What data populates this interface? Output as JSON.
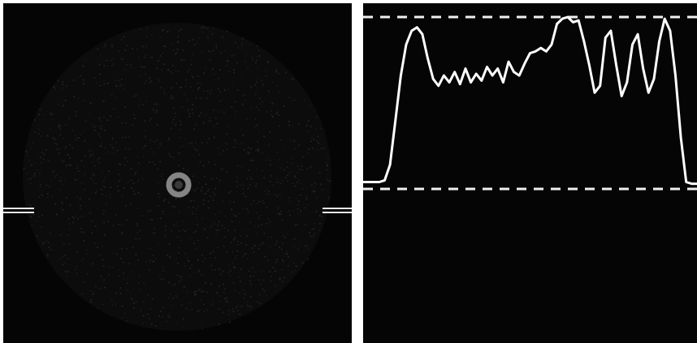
{
  "left_panel": {
    "content": "circular-speckle-image",
    "disc_color": "#2c2c2c",
    "spot_color": "#9a9a9a",
    "marker_color": "#e8e8e8"
  },
  "right_panel": {
    "content": "intensity-profile-trace",
    "trace_color": "#ffffff",
    "reference_line_style": "dashed",
    "profile": [
      0.04,
      0.04,
      0.04,
      0.04,
      0.05,
      0.14,
      0.4,
      0.66,
      0.84,
      0.92,
      0.94,
      0.9,
      0.76,
      0.64,
      0.6,
      0.66,
      0.62,
      0.68,
      0.61,
      0.7,
      0.62,
      0.67,
      0.63,
      0.71,
      0.66,
      0.7,
      0.62,
      0.74,
      0.68,
      0.66,
      0.73,
      0.79,
      0.8,
      0.82,
      0.8,
      0.84,
      0.96,
      0.99,
      1.0,
      0.97,
      0.98,
      0.86,
      0.72,
      0.56,
      0.6,
      0.88,
      0.92,
      0.72,
      0.54,
      0.62,
      0.84,
      0.9,
      0.7,
      0.56,
      0.64,
      0.86,
      0.99,
      0.92,
      0.66,
      0.3,
      0.04,
      0.03,
      0.03
    ]
  }
}
